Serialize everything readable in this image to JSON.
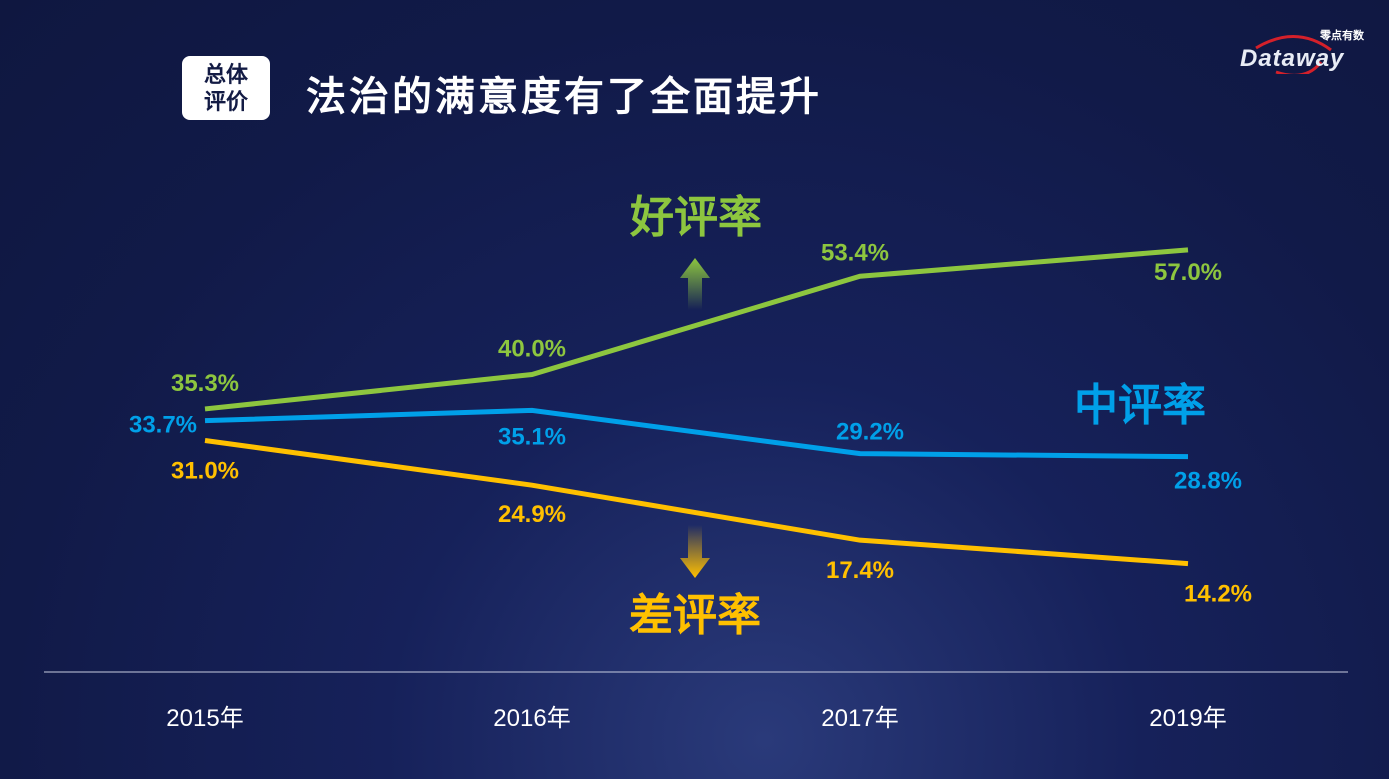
{
  "header": {
    "badge_line1": "总体",
    "badge_line2": "评价",
    "title": "法治的满意度有了全面提升"
  },
  "logo": {
    "word": "Dataway",
    "cn": "零点有数"
  },
  "chart_data": {
    "type": "line",
    "categories": [
      "2015年",
      "2016年",
      "2017年",
      "2019年"
    ],
    "series": [
      {
        "name": "好评率",
        "color": "#8dc63f",
        "values": [
          35.3,
          40.0,
          53.4,
          57.0
        ],
        "labels": [
          "35.3%",
          "40.0%",
          "53.4%",
          "57.0%"
        ]
      },
      {
        "name": "中评率",
        "color": "#00a0e9",
        "values": [
          33.7,
          35.1,
          29.2,
          28.8
        ],
        "labels": [
          "33.7%",
          "35.1%",
          "29.2%",
          "28.8%"
        ]
      },
      {
        "name": "差评率",
        "color": "#ffc000",
        "values": [
          31.0,
          24.9,
          17.4,
          14.2
        ],
        "labels": [
          "31.0%",
          "24.9%",
          "17.4%",
          "14.2%"
        ]
      }
    ],
    "ylim": [
      0,
      60
    ],
    "grid": false,
    "xlabel": "",
    "ylabel": ""
  }
}
